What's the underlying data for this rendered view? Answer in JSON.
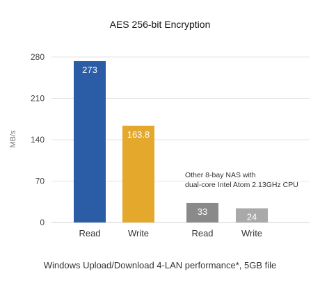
{
  "chart_data": {
    "type": "bar",
    "title": "AES 256-bit Encryption",
    "ylabel": "MB/s",
    "xlabel": "",
    "ylim": [
      0,
      280
    ],
    "yticks": [
      0,
      70,
      140,
      210,
      280
    ],
    "grid": true,
    "bars": [
      {
        "category": "Read",
        "value": 273,
        "label": "273",
        "color": "#2b5ca6"
      },
      {
        "category": "Write",
        "value": 163.8,
        "label": "163.8",
        "color": "#e3a82c"
      },
      {
        "category": "Read",
        "value": 33,
        "label": "33",
        "color": "#8a8a8a"
      },
      {
        "category": "Write",
        "value": 24,
        "label": "24",
        "color": "#a9a9a9"
      }
    ],
    "annotation": [
      "Other 8-bay NAS with",
      "dual-core Intel Atom 2.13GHz CPU"
    ],
    "caption": "Windows Upload/Download 4-LAN performance*, 5GB file"
  }
}
